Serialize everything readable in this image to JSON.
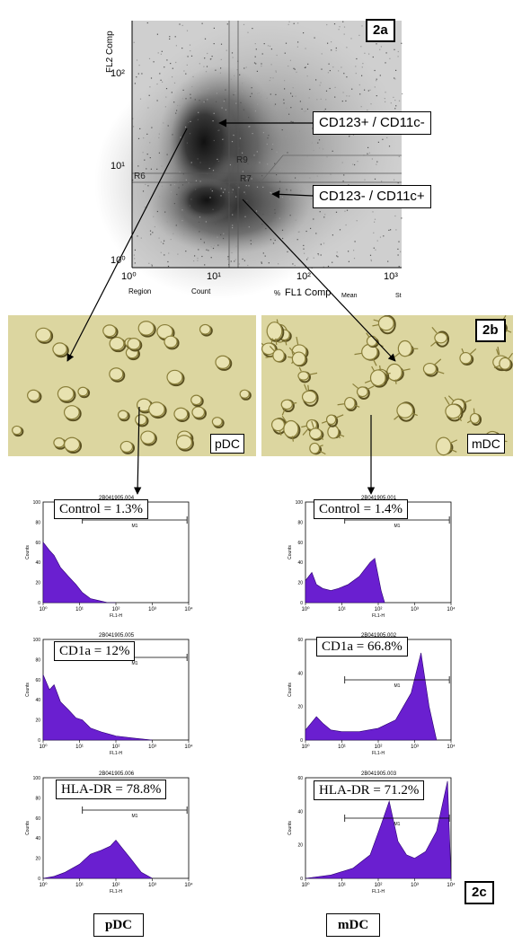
{
  "panel_2a": {
    "label": "2a",
    "y_axis_label": "FL2 Comp",
    "x_axis_label": "FL1 Comp",
    "y_ticks": [
      "10²",
      "10¹",
      "10⁰"
    ],
    "x_ticks": [
      "10⁰",
      "10¹",
      "10²",
      "10³"
    ],
    "regions": [
      "R6",
      "R9",
      "R7"
    ],
    "stats_header": [
      "Region",
      "Count",
      "%",
      "Mean",
      "St"
    ],
    "annotation_top": "CD123+ / CD11c-",
    "annotation_bottom": "CD123- / CD11c+"
  },
  "panel_2b": {
    "label": "2b",
    "left_label": "pDC",
    "right_label": "mDC"
  },
  "panel_2c": {
    "label": "2c",
    "file_ids_left": [
      "2B041905.004",
      "2B041905.005",
      "2B041905.006"
    ],
    "file_ids_right": [
      "2B041905.001",
      "2B041905.002",
      "2B041905.003"
    ],
    "y_axis": "Counts",
    "x_axis": "FL1-H",
    "gate": "M1",
    "bottom_left": "pDC",
    "bottom_right": "mDC"
  },
  "chart_data": [
    {
      "type": "area",
      "name": "pDC",
      "title": "Control = 1.3%",
      "xlabel": "FL1-H",
      "ylabel": "Counts",
      "xscale": "log",
      "xlim": [
        1,
        10000
      ],
      "ylim": [
        0,
        100
      ],
      "y_ticks": [
        0,
        20,
        40,
        60,
        80,
        100
      ],
      "x": [
        1,
        1.5,
        2,
        3,
        5,
        8,
        12,
        20,
        35,
        60,
        100
      ],
      "y": [
        60,
        52,
        47,
        35,
        26,
        18,
        10,
        4,
        2,
        0,
        0
      ]
    },
    {
      "type": "area",
      "name": "pDC",
      "title": "CD1a = 12%",
      "xlabel": "FL1-H",
      "ylabel": "Counts",
      "xscale": "log",
      "xlim": [
        1,
        10000
      ],
      "ylim": [
        0,
        100
      ],
      "y_ticks": [
        0,
        20,
        40,
        60,
        80,
        100
      ],
      "x": [
        1,
        1.5,
        2,
        3,
        5,
        8,
        12,
        20,
        40,
        100,
        300,
        1000
      ],
      "y": [
        65,
        50,
        55,
        38,
        30,
        22,
        20,
        12,
        8,
        4,
        2,
        0
      ]
    },
    {
      "type": "area",
      "name": "pDC",
      "title": "HLA-DR = 78.8%",
      "xlabel": "FL1-H",
      "ylabel": "Counts",
      "xscale": "log",
      "xlim": [
        1,
        10000
      ],
      "ylim": [
        0,
        100
      ],
      "y_ticks": [
        0,
        20,
        40,
        60,
        80,
        100
      ],
      "x": [
        1,
        2,
        4,
        10,
        20,
        40,
        70,
        100,
        150,
        250,
        500,
        1000
      ],
      "y": [
        0,
        2,
        6,
        14,
        24,
        28,
        32,
        38,
        30,
        20,
        6,
        0
      ]
    },
    {
      "type": "area",
      "name": "mDC",
      "title": "Control = 1.4%",
      "xlabel": "FL1-H",
      "ylabel": "Counts",
      "xscale": "log",
      "xlim": [
        1,
        10000
      ],
      "ylim": [
        0,
        100
      ],
      "y_ticks": [
        0,
        20,
        40,
        60,
        80,
        100
      ],
      "x": [
        1,
        1.5,
        2,
        3,
        5,
        8,
        15,
        30,
        60,
        80,
        120,
        150
      ],
      "y": [
        22,
        30,
        18,
        14,
        12,
        14,
        18,
        26,
        40,
        44,
        12,
        0
      ]
    },
    {
      "type": "area",
      "name": "mDC",
      "title": "CD1a = 66.8%",
      "xlabel": "FL1-H",
      "ylabel": "Counts",
      "xscale": "log",
      "xlim": [
        1,
        10000
      ],
      "ylim": [
        0,
        60
      ],
      "y_ticks": [
        0,
        20,
        40,
        60
      ],
      "x": [
        1,
        2,
        3,
        5,
        10,
        30,
        100,
        300,
        800,
        1500,
        2500,
        4000
      ],
      "y": [
        6,
        14,
        10,
        6,
        5,
        5,
        7,
        12,
        28,
        52,
        20,
        0
      ]
    },
    {
      "type": "area",
      "name": "mDC",
      "title": "HLA-DR = 71.2%",
      "xlabel": "FL1-H",
      "ylabel": "Counts",
      "xscale": "log",
      "xlim": [
        1,
        10000
      ],
      "ylim": [
        0,
        60
      ],
      "y_ticks": [
        0,
        20,
        40,
        60
      ],
      "x": [
        1,
        5,
        20,
        60,
        120,
        200,
        350,
        600,
        1000,
        2000,
        4000,
        8000,
        10000
      ],
      "y": [
        0,
        2,
        6,
        14,
        32,
        46,
        22,
        14,
        12,
        16,
        28,
        58,
        0
      ]
    }
  ]
}
